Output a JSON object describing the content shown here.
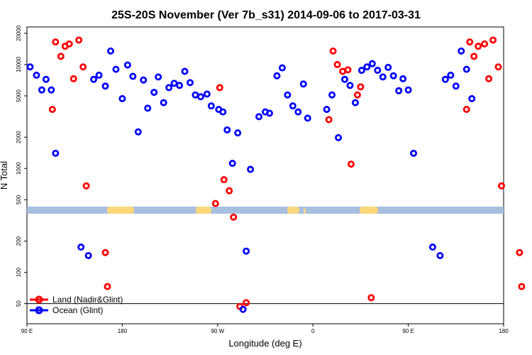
{
  "chart_data": {
    "type": "scatter",
    "title": "25S-20S November (Ver 7b_s31)   2014-09-06 to 2017-03-31",
    "xlabel": "Longitude (deg E)",
    "ylabel": "N Total",
    "x_ticks": [
      {
        "value": 90,
        "label": "90 E"
      },
      {
        "value": 180,
        "label": "180"
      },
      {
        "value": 270,
        "label": "90 W"
      },
      {
        "value": 360,
        "label": "0"
      },
      {
        "value": 450,
        "label": "90 E"
      },
      {
        "value": 540,
        "label": "180"
      }
    ],
    "y_ticks": [
      {
        "value": 20000,
        "label": "20000"
      },
      {
        "value": 10000,
        "label": "10000"
      },
      {
        "value": 5000,
        "label": "5000"
      },
      {
        "value": 2000,
        "label": "2000"
      },
      {
        "value": 1000,
        "label": "1000"
      },
      {
        "value": 500,
        "label": "500"
      },
      {
        "value": 200,
        "label": "200"
      },
      {
        "value": 100,
        "label": "100"
      },
      {
        "value": 50,
        "label": "50"
      }
    ],
    "xlim": [
      90,
      540
    ],
    "ylim": [
      32,
      23000
    ],
    "log_y": true,
    "reference_line": 50,
    "map_strip": {
      "ocean_color": "#a7bede",
      "land_color": "#fbd77a"
    },
    "legend_placement": "bottom-left",
    "series": [
      {
        "name": "Land (Nadir&Glint)",
        "color": "#ff0000",
        "points": [
          [
            114,
            3700
          ],
          [
            117,
            16500
          ],
          [
            122,
            12000
          ],
          [
            126,
            15000
          ],
          [
            130,
            15800
          ],
          [
            134,
            7300
          ],
          [
            139,
            17200
          ],
          [
            143,
            9500
          ],
          [
            146,
            680
          ],
          [
            164,
            155
          ],
          [
            166,
            73
          ],
          [
            268,
            460
          ],
          [
            272,
            6000
          ],
          [
            276,
            780
          ],
          [
            281,
            610
          ],
          [
            285,
            340
          ],
          [
            291,
            47
          ],
          [
            297,
            51
          ],
          [
            375,
            2950
          ],
          [
            379,
            13500
          ],
          [
            383,
            10000
          ],
          [
            388,
            8600
          ],
          [
            393,
            8900
          ],
          [
            396,
            1100
          ],
          [
            402,
            5100
          ],
          [
            405,
            6100
          ],
          [
            415,
            57
          ],
          [
            505,
            3700
          ],
          [
            508,
            16500
          ],
          [
            512,
            12000
          ],
          [
            516,
            15000
          ],
          [
            522,
            15800
          ],
          [
            526,
            7300
          ],
          [
            530,
            17200
          ],
          [
            535,
            9500
          ],
          [
            538,
            680
          ],
          [
            555,
            155
          ],
          [
            557,
            73
          ]
        ]
      },
      {
        "name": "Ocean (Glint)",
        "color": "#0000ff",
        "points": [
          [
            93,
            9500
          ],
          [
            99,
            7900
          ],
          [
            104,
            5700
          ],
          [
            108,
            7200
          ],
          [
            113,
            5700
          ],
          [
            117,
            1400
          ],
          [
            141,
            175
          ],
          [
            148,
            145
          ],
          [
            153,
            7200
          ],
          [
            158,
            7900
          ],
          [
            164,
            6200
          ],
          [
            169,
            13500
          ],
          [
            174,
            9000
          ],
          [
            180,
            4700
          ],
          [
            185,
            9900
          ],
          [
            190,
            7700
          ],
          [
            195,
            2250
          ],
          [
            200,
            7100
          ],
          [
            204,
            3800
          ],
          [
            210,
            5400
          ],
          [
            214,
            7600
          ],
          [
            219,
            4300
          ],
          [
            224,
            6000
          ],
          [
            229,
            6600
          ],
          [
            234,
            6300
          ],
          [
            239,
            8600
          ],
          [
            244,
            6700
          ],
          [
            249,
            5100
          ],
          [
            254,
            4900
          ],
          [
            260,
            5200
          ],
          [
            264,
            4000
          ],
          [
            271,
            3700
          ],
          [
            275,
            3500
          ],
          [
            279,
            2350
          ],
          [
            284,
            1120
          ],
          [
            289,
            2200
          ],
          [
            294,
            44
          ],
          [
            297,
            160
          ],
          [
            301,
            980
          ],
          [
            309,
            3150
          ],
          [
            315,
            3500
          ],
          [
            319,
            3400
          ],
          [
            326,
            7800
          ],
          [
            331,
            9300
          ],
          [
            336,
            5100
          ],
          [
            341,
            4000
          ],
          [
            346,
            3500
          ],
          [
            351,
            6500
          ],
          [
            355,
            3050
          ],
          [
            373,
            3700
          ],
          [
            378,
            5100
          ],
          [
            384,
            1980
          ],
          [
            390,
            7200
          ],
          [
            395,
            6300
          ],
          [
            400,
            4300
          ],
          [
            406,
            8800
          ],
          [
            411,
            9500
          ],
          [
            416,
            10200
          ],
          [
            421,
            8800
          ],
          [
            426,
            7600
          ],
          [
            431,
            9400
          ],
          [
            436,
            7800
          ],
          [
            441,
            5600
          ],
          [
            445,
            7300
          ],
          [
            450,
            5700
          ],
          [
            455,
            1400
          ],
          [
            473,
            175
          ],
          [
            480,
            145
          ],
          [
            485,
            7200
          ],
          [
            490,
            7900
          ],
          [
            495,
            6200
          ],
          [
            500,
            13500
          ],
          [
            505,
            9000
          ],
          [
            510,
            4700
          ]
        ]
      }
    ]
  }
}
